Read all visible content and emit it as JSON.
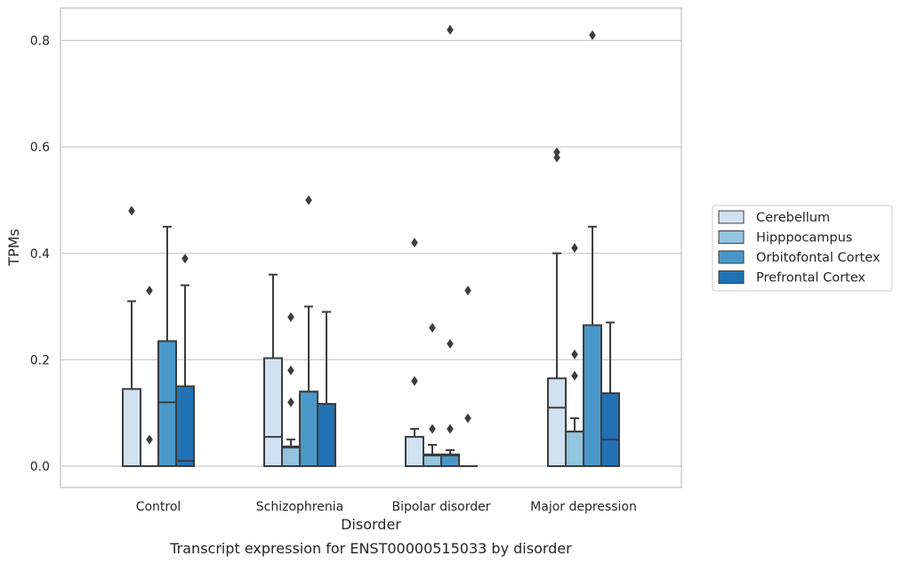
{
  "chart_data": {
    "type": "box",
    "title": "Transcript expression for ENST00000515033 by disorder",
    "xlabel": "Disorder",
    "ylabel": "TPMs",
    "ylim": [
      -0.04,
      0.86
    ],
    "yticks": [
      "0.0",
      "0.2",
      "0.4",
      "0.6",
      "0.8"
    ],
    "grid": true,
    "legend_position": "right",
    "categories": [
      "Control",
      "Schizophrenia",
      "Bipolar disorder",
      "Major depression"
    ],
    "series": [
      {
        "name": "Cerebellum",
        "color": "#d0e1f2",
        "boxes": [
          {
            "q1": 0.0,
            "median": 0.0,
            "q3": 0.145,
            "whisker_low": 0.0,
            "whisker_high": 0.31,
            "outliers": [
              0.48
            ]
          },
          {
            "q1": 0.0,
            "median": 0.055,
            "q3": 0.203,
            "whisker_low": 0.0,
            "whisker_high": 0.36,
            "outliers": []
          },
          {
            "q1": 0.0,
            "median": 0.0,
            "q3": 0.055,
            "whisker_low": 0.0,
            "whisker_high": 0.07,
            "outliers": [
              0.16,
              0.42
            ]
          },
          {
            "q1": 0.0,
            "median": 0.11,
            "q3": 0.165,
            "whisker_low": 0.0,
            "whisker_high": 0.4,
            "outliers": [
              0.58,
              0.59
            ]
          }
        ]
      },
      {
        "name": "Hipppocampus",
        "color": "#94c4df",
        "boxes": [
          {
            "q1": 0.0,
            "median": 0.0,
            "q3": 0.0,
            "whisker_low": 0.0,
            "whisker_high": 0.0,
            "outliers": [
              0.05,
              0.33
            ]
          },
          {
            "q1": 0.0,
            "median": 0.035,
            "q3": 0.037,
            "whisker_low": 0.0,
            "whisker_high": 0.05,
            "outliers": [
              0.12,
              0.18,
              0.28
            ]
          },
          {
            "q1": 0.0,
            "median": 0.02,
            "q3": 0.022,
            "whisker_low": 0.0,
            "whisker_high": 0.04,
            "outliers": [
              0.07,
              0.26
            ]
          },
          {
            "q1": 0.0,
            "median": 0.065,
            "q3": 0.065,
            "whisker_low": 0.0,
            "whisker_high": 0.09,
            "outliers": [
              0.17,
              0.21,
              0.41
            ]
          }
        ]
      },
      {
        "name": "Orbitofontal Cortex",
        "color": "#4a98c9",
        "boxes": [
          {
            "q1": 0.0,
            "median": 0.12,
            "q3": 0.235,
            "whisker_low": 0.0,
            "whisker_high": 0.45,
            "outliers": []
          },
          {
            "q1": 0.0,
            "median": 0.14,
            "q3": 0.14,
            "whisker_low": 0.0,
            "whisker_high": 0.3,
            "outliers": [
              0.5
            ]
          },
          {
            "q1": 0.0,
            "median": 0.02,
            "q3": 0.022,
            "whisker_low": 0.0,
            "whisker_high": 0.03,
            "outliers": [
              0.07,
              0.23,
              0.82
            ]
          },
          {
            "q1": 0.0,
            "median": 0.265,
            "q3": 0.265,
            "whisker_low": 0.0,
            "whisker_high": 0.45,
            "outliers": [
              0.81
            ]
          }
        ]
      },
      {
        "name": "Prefrontal Cortex",
        "color": "#2171b5",
        "boxes": [
          {
            "q1": 0.0,
            "median": 0.01,
            "q3": 0.15,
            "whisker_low": 0.0,
            "whisker_high": 0.34,
            "outliers": [
              0.39
            ]
          },
          {
            "q1": 0.0,
            "median": 0.117,
            "q3": 0.117,
            "whisker_low": 0.0,
            "whisker_high": 0.29,
            "outliers": []
          },
          {
            "q1": 0.0,
            "median": 0.0,
            "q3": 0.0,
            "whisker_low": 0.0,
            "whisker_high": 0.0,
            "outliers": [
              0.09,
              0.33
            ]
          },
          {
            "q1": 0.0,
            "median": 0.05,
            "q3": 0.137,
            "whisker_low": 0.0,
            "whisker_high": 0.27,
            "outliers": []
          }
        ]
      }
    ]
  }
}
